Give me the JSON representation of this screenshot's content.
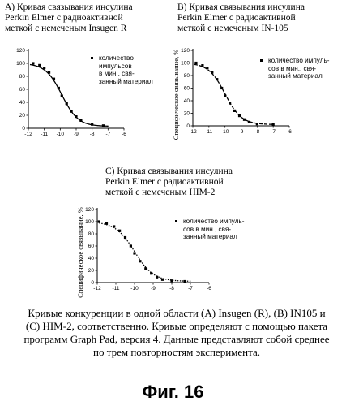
{
  "panels": [
    {
      "title": "А) Кривая связывания инсулина\nPerkin Elmer с радиоактивной\nметкой с немеченым Insugen R",
      "legend": "количество\nимпульсов\nв мин., свя-\nзанный материал",
      "ylabel": ""
    },
    {
      "title": "В) Кривая связывания инсулина\nPerkin Elmer с радиоактивной\nметкой с немеченым IN-105",
      "legend": "количество импуль-\nсов в мин., свя-\nзанный материал",
      "ylabel": "Специфическое связывание, %"
    },
    {
      "title": "С) Кривая связывания инсулина\nPerkin Elmer с радиоактивной\nметкой с немеченым HIM-2",
      "legend": "количество импуль-\nсов в мин., свя-\nзанный материал",
      "ylabel": "Специфическое связывание, %"
    }
  ],
  "caption": "Кривые конкуренции в одной области (А) Insugen (R), (В) IN105 и (С) HIM-2, соответственно. Кривые определяют с помощью пакета программ Graph Pad, версия 4. Данные представляют собой среднее по трем повторностям эксперимента.",
  "figure_label": "Фиг. 16",
  "chart_data": [
    {
      "type": "scatter",
      "line_style": "solid",
      "xlim": [
        -12,
        -6
      ],
      "ylim": [
        0,
        120
      ],
      "xticks": [
        -12,
        -11,
        -10,
        -9,
        -8,
        -7,
        -6
      ],
      "yticks": [
        0,
        20,
        40,
        60,
        80,
        100,
        120
      ],
      "series": [
        {
          "x": [
            -11.7,
            -11.3,
            -11.0,
            -10.7,
            -10.4,
            -10.1,
            -9.9,
            -9.6,
            -9.3,
            -9.0,
            -8.7,
            -8.0,
            -7.3
          ],
          "y": [
            100,
            97,
            93,
            86,
            76,
            62,
            50,
            38,
            26,
            18,
            12,
            6,
            4
          ]
        }
      ],
      "curve": {
        "top": 100,
        "bottom": 3,
        "logec50": -9.9,
        "hill": -0.85
      }
    },
    {
      "type": "scatter",
      "line_style": "dashed",
      "xlim": [
        -12,
        -6
      ],
      "ylim": [
        0,
        120
      ],
      "xticks": [
        -12,
        -11,
        -10,
        -9,
        -8,
        -7,
        -6
      ],
      "yticks": [
        0,
        20,
        40,
        60,
        80,
        100,
        120
      ],
      "series": [
        {
          "x": [
            -11.8,
            -11.4,
            -11.1,
            -10.8,
            -10.5,
            -10.2,
            -10.0,
            -9.7,
            -9.4,
            -9.1,
            -8.8,
            -8.5,
            -8.0,
            -7.0
          ],
          "y": [
            100,
            96,
            92,
            85,
            74,
            60,
            48,
            36,
            24,
            16,
            10,
            6,
            3,
            2
          ]
        }
      ],
      "curve": {
        "top": 100,
        "bottom": 2,
        "logec50": -10.0,
        "hill": -0.85
      }
    },
    {
      "type": "scatter",
      "line_style": "dotted",
      "xlim": [
        -12,
        -6
      ],
      "ylim": [
        0,
        120
      ],
      "xticks": [
        -12,
        -11,
        -10,
        -9,
        -8,
        -7,
        -6
      ],
      "yticks": [
        0,
        20,
        40,
        60,
        80,
        100,
        120
      ],
      "series": [
        {
          "x": [
            -11.9,
            -11.5,
            -11.1,
            -10.8,
            -10.5,
            -10.2,
            -10.0,
            -9.7,
            -9.4,
            -9.1,
            -8.8,
            -8.5,
            -8.0,
            -7.3
          ],
          "y": [
            100,
            97,
            92,
            85,
            74,
            60,
            48,
            35,
            23,
            15,
            9,
            5,
            3,
            2
          ]
        }
      ],
      "curve": {
        "top": 100,
        "bottom": 2,
        "logec50": -10.0,
        "hill": -0.85
      }
    }
  ]
}
